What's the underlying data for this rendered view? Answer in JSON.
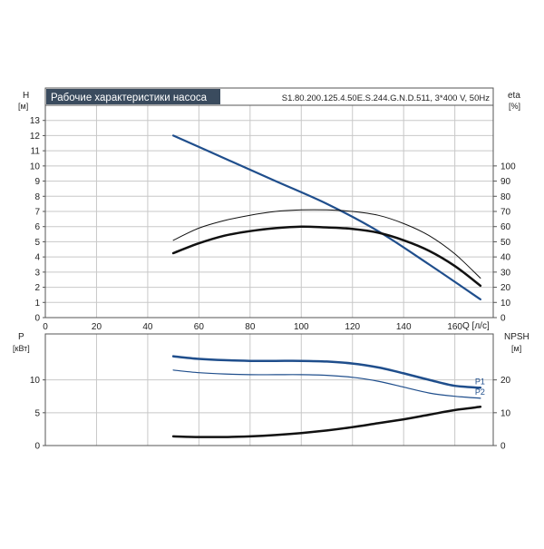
{
  "header": {
    "title": "Рабочие характеристики насоса",
    "model": "S1.80.200.125.4.50E.S.244.G.N.D.511, 3*400 V, 50Hz"
  },
  "colors": {
    "blue": "#1f4e8c",
    "black": "#111111",
    "title_bg": "#3a4b5e"
  },
  "chart_data": [
    {
      "type": "line",
      "name": "head-efficiency",
      "xlabel": "Q [л/с]",
      "ylabel_left": "H",
      "ylabel_left_unit": "[м]",
      "ylabel_right": "eta",
      "ylabel_right_unit": "[%]",
      "xlim": [
        0,
        175
      ],
      "ylim_left": [
        0,
        14
      ],
      "ylim_right": [
        0,
        140
      ],
      "x_ticks": [
        0,
        20,
        40,
        60,
        80,
        100,
        120,
        140,
        160
      ],
      "y_ticks_left": [
        0,
        1,
        2,
        3,
        4,
        5,
        6,
        7,
        8,
        9,
        10,
        11,
        12,
        13
      ],
      "y_ticks_right": [
        0,
        10,
        20,
        30,
        40,
        50,
        60,
        70,
        80,
        90,
        100
      ],
      "grid": true,
      "series": [
        {
          "axis": "left",
          "color": "blue",
          "width": 2.2,
          "x": [
            50,
            70,
            90,
            110,
            130,
            150,
            170
          ],
          "y": [
            12.0,
            10.5,
            9.0,
            7.5,
            5.7,
            3.5,
            1.2
          ]
        },
        {
          "axis": "right",
          "color": "black",
          "width": 1,
          "x": [
            50,
            60,
            70,
            80,
            90,
            100,
            110,
            120,
            130,
            140,
            150,
            160,
            170
          ],
          "y": [
            51,
            59,
            64,
            67.5,
            70,
            71,
            71,
            70,
            67.5,
            62,
            54,
            42,
            26
          ]
        },
        {
          "axis": "right",
          "color": "black",
          "width": 2.5,
          "x": [
            50,
            60,
            70,
            80,
            90,
            100,
            110,
            120,
            130,
            140,
            150,
            160,
            170
          ],
          "y": [
            42.5,
            49,
            54,
            57,
            59,
            60,
            59.5,
            58.5,
            56,
            51,
            44,
            34,
            21
          ]
        }
      ]
    },
    {
      "type": "line",
      "name": "power-npsh",
      "ylabel_left": "P",
      "ylabel_left_unit": "[кВт]",
      "ylabel_right": "NPSH",
      "ylabel_right_unit": "[м]",
      "xlim": [
        0,
        175
      ],
      "ylim_left": [
        0,
        17
      ],
      "ylim_right": [
        0,
        34
      ],
      "x_ticks": [
        0,
        20,
        40,
        60,
        80,
        100,
        120,
        140,
        160
      ],
      "y_ticks_left": [
        0,
        5,
        10
      ],
      "y_ticks_right": [
        0,
        10,
        20
      ],
      "grid": true,
      "series": [
        {
          "axis": "left",
          "name": "P1",
          "color": "blue",
          "width": 2.5,
          "x": [
            50,
            60,
            70,
            80,
            90,
            100,
            110,
            120,
            130,
            140,
            150,
            160,
            170
          ],
          "y": [
            13.6,
            13.2,
            13.0,
            12.9,
            12.9,
            12.9,
            12.8,
            12.5,
            11.9,
            11.0,
            10.0,
            9.1,
            8.8
          ]
        },
        {
          "axis": "left",
          "name": "P2",
          "color": "blue",
          "width": 1.2,
          "x": [
            50,
            60,
            70,
            80,
            90,
            100,
            110,
            120,
            130,
            140,
            150,
            160,
            170
          ],
          "y": [
            11.5,
            11.1,
            10.9,
            10.8,
            10.8,
            10.8,
            10.7,
            10.4,
            9.8,
            8.9,
            8.0,
            7.5,
            7.2
          ]
        },
        {
          "axis": "right",
          "color": "black",
          "width": 2.5,
          "x": [
            50,
            60,
            70,
            80,
            90,
            100,
            110,
            120,
            130,
            140,
            150,
            160,
            170
          ],
          "y": [
            2.8,
            2.6,
            2.6,
            2.8,
            3.2,
            3.8,
            4.6,
            5.6,
            6.8,
            8.0,
            9.4,
            10.8,
            11.8
          ]
        }
      ]
    }
  ]
}
